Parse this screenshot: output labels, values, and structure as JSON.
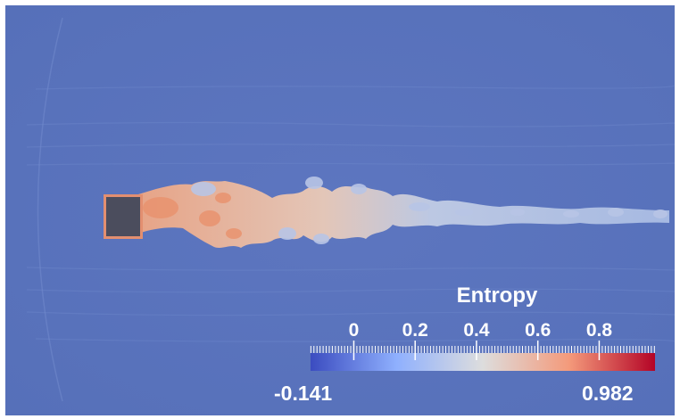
{
  "legend": {
    "title": "Entropy",
    "ticks": [
      "0",
      "0.2",
      "0.4",
      "0.6",
      "0.8"
    ],
    "range_min": "-0.141",
    "range_max": "0.982",
    "range": [
      -0.141,
      0.982
    ],
    "tick_values": [
      0,
      0.2,
      0.4,
      0.6,
      0.8
    ],
    "colormap": [
      "#3b4cc0",
      "#8fb0fe",
      "#dddddd",
      "#f49a7b",
      "#b40426"
    ]
  },
  "colors": {
    "background": "#5a73bd",
    "body": "#4d4d5c",
    "wake_hot": "#e7967a",
    "wake_warm": "#e9b69f",
    "wake_cool": "#b3c3e6"
  },
  "scene": {
    "description_free": true
  }
}
